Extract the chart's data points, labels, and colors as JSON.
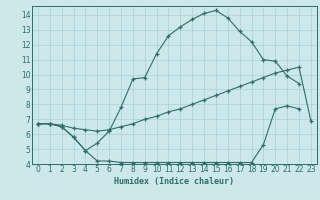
{
  "xlabel": "Humidex (Indice chaleur)",
  "bg_color": "#cce8ea",
  "line_color": "#2d6e6a",
  "grid_color": "#aad0d4",
  "xlim": [
    -0.5,
    23.5
  ],
  "ylim": [
    4,
    14.6
  ],
  "xticks": [
    0,
    1,
    2,
    3,
    4,
    5,
    6,
    7,
    8,
    9,
    10,
    11,
    12,
    13,
    14,
    15,
    16,
    17,
    18,
    19,
    20,
    21,
    22,
    23
  ],
  "yticks": [
    4,
    5,
    6,
    7,
    8,
    9,
    10,
    11,
    12,
    13,
    14
  ],
  "line1_x": [
    0,
    1,
    2,
    3,
    4,
    5,
    6,
    7,
    8,
    9,
    10,
    11,
    12,
    13,
    14,
    15,
    16,
    17,
    18,
    19,
    20,
    21,
    22
  ],
  "line1_y": [
    6.7,
    6.7,
    6.5,
    5.8,
    4.9,
    4.2,
    4.2,
    4.1,
    4.1,
    4.1,
    4.1,
    4.1,
    4.1,
    4.1,
    4.1,
    4.1,
    4.1,
    4.1,
    4.1,
    5.3,
    7.7,
    7.9,
    7.7
  ],
  "line2_x": [
    0,
    1,
    2,
    3,
    4,
    5,
    6,
    7,
    8,
    9,
    10,
    11,
    12,
    13,
    14,
    15,
    16,
    17,
    18,
    19,
    20,
    21,
    22
  ],
  "line2_y": [
    6.7,
    6.7,
    6.5,
    5.8,
    4.9,
    5.4,
    6.2,
    7.8,
    9.7,
    9.8,
    11.4,
    12.6,
    13.2,
    13.7,
    14.1,
    14.3,
    13.8,
    12.9,
    12.2,
    11.0,
    10.9,
    9.9,
    9.4
  ],
  "line3_x": [
    0,
    1,
    2,
    3,
    4,
    5,
    6,
    7,
    8,
    9,
    10,
    11,
    12,
    13,
    14,
    15,
    16,
    17,
    18,
    19,
    20,
    21,
    22,
    23
  ],
  "line3_y": [
    6.7,
    6.7,
    6.6,
    6.4,
    6.3,
    6.2,
    6.3,
    6.5,
    6.7,
    7.0,
    7.2,
    7.5,
    7.7,
    8.0,
    8.3,
    8.6,
    8.9,
    9.2,
    9.5,
    9.8,
    10.1,
    10.3,
    10.5,
    6.9
  ]
}
